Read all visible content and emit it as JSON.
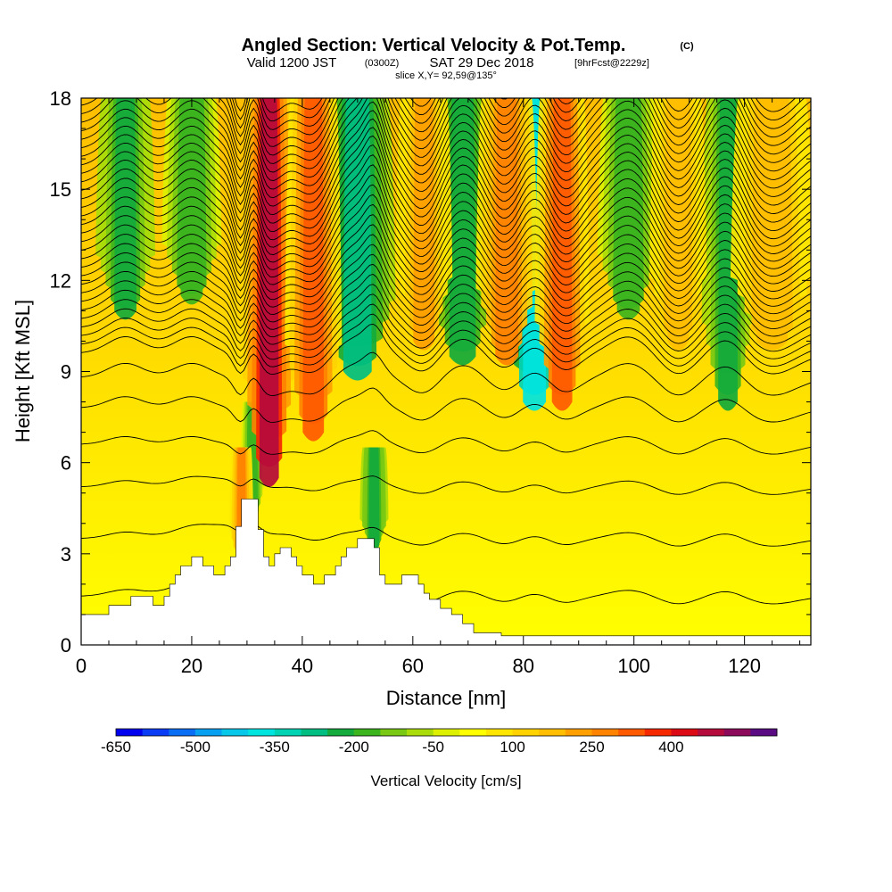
{
  "header": {
    "title": "Angled Section: Vertical Velocity & Pot.Temp.",
    "title_units": "(C)",
    "valid_prefix": "Valid 1200 JST",
    "valid_utc": "(0300Z)",
    "valid_date": "SAT 29 Dec 2018",
    "valid_fcst": "[9hrFcst@2229z]",
    "slice": "slice X,Y= 92,59@135°"
  },
  "chart_data": {
    "type": "heatmap",
    "xlabel": "Distance [nm]",
    "ylabel": "Height [Kft MSL]",
    "xlim": [
      0,
      132
    ],
    "ylim": [
      0,
      18
    ],
    "x_ticks": [
      0,
      20,
      40,
      60,
      80,
      100,
      120
    ],
    "y_ticks": [
      0,
      3,
      6,
      9,
      12,
      15,
      18
    ],
    "grid": false,
    "colorbar": {
      "label": "Vertical Velocity [cm/s]",
      "tick_labels": [
        "-650",
        "-500",
        "-350",
        "-200",
        "-50",
        "100",
        "250",
        "400"
      ],
      "min": -650,
      "step": 50,
      "colors": [
        "#0000ee",
        "#0a3cf5",
        "#0a6ef5",
        "#08a0f0",
        "#08c8ea",
        "#00e4e0",
        "#00d2b4",
        "#00be82",
        "#14aa3c",
        "#3cb41e",
        "#78c814",
        "#aadc0a",
        "#dcf000",
        "#ffff00",
        "#ffe600",
        "#ffd200",
        "#ffbe00",
        "#ffa000",
        "#ff8200",
        "#ff5a00",
        "#f52800",
        "#dc0a14",
        "#b40a3c",
        "#8c0a5a",
        "#5a0a82"
      ]
    },
    "terrain": [
      [
        0,
        1.0
      ],
      [
        5,
        1.0
      ],
      [
        5,
        1.3
      ],
      [
        9,
        1.3
      ],
      [
        9,
        1.6
      ],
      [
        13,
        1.6
      ],
      [
        13,
        1.3
      ],
      [
        15,
        1.3
      ],
      [
        15,
        1.6
      ],
      [
        16,
        1.6
      ],
      [
        16,
        2.0
      ],
      [
        17,
        2.0
      ],
      [
        17,
        2.3
      ],
      [
        18,
        2.3
      ],
      [
        18,
        2.6
      ],
      [
        20,
        2.6
      ],
      [
        20,
        2.9
      ],
      [
        22,
        2.9
      ],
      [
        22,
        2.6
      ],
      [
        24,
        2.6
      ],
      [
        24,
        2.3
      ],
      [
        26,
        2.3
      ],
      [
        26,
        2.6
      ],
      [
        27,
        2.6
      ],
      [
        27,
        2.9
      ],
      [
        28,
        2.9
      ],
      [
        28,
        3.9
      ],
      [
        29,
        3.9
      ],
      [
        29,
        4.8
      ],
      [
        32,
        4.8
      ],
      [
        32,
        3.8
      ],
      [
        33,
        3.8
      ],
      [
        33,
        2.9
      ],
      [
        34,
        2.9
      ],
      [
        34,
        2.6
      ],
      [
        35,
        2.6
      ],
      [
        35,
        3.0
      ],
      [
        36,
        3.0
      ],
      [
        36,
        3.2
      ],
      [
        38,
        3.2
      ],
      [
        38,
        2.9
      ],
      [
        39,
        2.9
      ],
      [
        39,
        2.6
      ],
      [
        40,
        2.6
      ],
      [
        40,
        2.3
      ],
      [
        42,
        2.3
      ],
      [
        42,
        2.0
      ],
      [
        44,
        2.0
      ],
      [
        44,
        2.3
      ],
      [
        46,
        2.3
      ],
      [
        46,
        2.6
      ],
      [
        47,
        2.6
      ],
      [
        47,
        2.9
      ],
      [
        48,
        2.9
      ],
      [
        48,
        3.2
      ],
      [
        50,
        3.2
      ],
      [
        50,
        3.5
      ],
      [
        53,
        3.5
      ],
      [
        53,
        3.2
      ],
      [
        54,
        3.2
      ],
      [
        54,
        2.3
      ],
      [
        55,
        2.3
      ],
      [
        55,
        2.0
      ],
      [
        58,
        2.0
      ],
      [
        58,
        2.3
      ],
      [
        61,
        2.3
      ],
      [
        61,
        2.0
      ],
      [
        62,
        2.0
      ],
      [
        62,
        1.7
      ],
      [
        63,
        1.7
      ],
      [
        63,
        1.5
      ],
      [
        65,
        1.5
      ],
      [
        65,
        1.2
      ],
      [
        67,
        1.2
      ],
      [
        67,
        1.0
      ],
      [
        69,
        1.0
      ],
      [
        69,
        0.7
      ],
      [
        71,
        0.7
      ],
      [
        71,
        0.4
      ],
      [
        76,
        0.4
      ],
      [
        76,
        0.3
      ],
      [
        132,
        0.3
      ]
    ],
    "upward_bands": [
      {
        "x": 29,
        "w": 1.0,
        "y0": 2.8,
        "y1": 6.5,
        "vv": 275
      },
      {
        "x": 34,
        "w": 2.2,
        "y0": 5.5,
        "y1": 18,
        "vv": 450
      },
      {
        "x": 42,
        "w": 2.4,
        "y0": 7.0,
        "y1": 18,
        "vv": 330
      },
      {
        "x": 62,
        "w": 2.4,
        "y0": 10.0,
        "y1": 18,
        "vv": 220
      },
      {
        "x": 77,
        "w": 2.6,
        "y0": 9.5,
        "y1": 18,
        "vv": 280
      },
      {
        "x": 87,
        "w": 2.3,
        "y0": 8.0,
        "y1": 18,
        "vv": 330
      },
      {
        "x": 108,
        "w": 2.4,
        "y0": 10.0,
        "y1": 18,
        "vv": 180
      },
      {
        "x": 125,
        "w": 3.5,
        "y0": 10.0,
        "y1": 18,
        "vv": 190
      }
    ],
    "downward_bands": [
      {
        "x": 8,
        "w": 2.5,
        "y0": 11.0,
        "y1": 18,
        "vv": -210
      },
      {
        "x": 20,
        "w": 2.5,
        "y0": 11.5,
        "y1": 18,
        "vv": -180
      },
      {
        "x": 31,
        "w": 1.0,
        "y0": 4.2,
        "y1": 8.0,
        "vv": -200
      },
      {
        "x": 53,
        "w": 1.2,
        "y0": 3.3,
        "y1": 6.5,
        "vv": -230
      },
      {
        "x": 50,
        "w": 3.2,
        "y0": 9.0,
        "y1": 18,
        "vv": -260
      },
      {
        "x": 69,
        "w": 3.0,
        "y0": 9.5,
        "y1": 18,
        "vv": -230
      },
      {
        "x": 82,
        "w": 2.6,
        "y0": 8.0,
        "y1": 18,
        "vv": -380
      },
      {
        "x": 99,
        "w": 2.6,
        "y0": 11.0,
        "y1": 18,
        "vv": -190
      },
      {
        "x": 117,
        "w": 2.2,
        "y0": 8.0,
        "y1": 18,
        "vv": -220
      }
    ],
    "isentropes": {
      "base": [
        1.6,
        3.5,
        5.2,
        6.6,
        7.8,
        8.8
      ],
      "upper_start": 9.6,
      "upper_step": 0.28,
      "upper_count": 34
    }
  }
}
